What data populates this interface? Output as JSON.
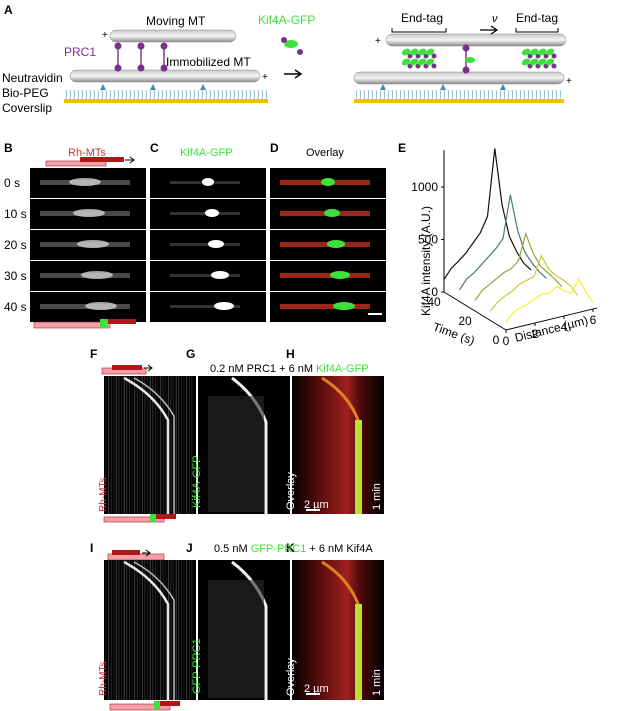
{
  "panel_letters": [
    "A",
    "B",
    "C",
    "D",
    "E",
    "F",
    "G",
    "H",
    "I",
    "J",
    "K"
  ],
  "schematic": {
    "moving_mt": "Moving MT",
    "immobilized_mt": "Immobilized MT",
    "prc1": "PRC1",
    "kif4a_gfp": "Kif4A-GFP",
    "neutravidin": "Neutravidin",
    "bio_peg": "Bio-PEG",
    "coverslip": "Coverslip",
    "end_tag_left": "End-tag",
    "end_tag_right": "End-tag",
    "plus": "+",
    "nu": "ν",
    "colors": {
      "prc1": "#7b2f8e",
      "kif4a": "#3ce23a",
      "mt": "#9a9a9a",
      "coverslip": "#f0c000"
    }
  },
  "timelapse": {
    "col_b_title": "Rh-MTs",
    "col_c_title": "Kif4A-GFP",
    "col_d_title": "Overlay",
    "times": [
      "0 s",
      "10 s",
      "20 s",
      "30 s",
      "40 s"
    ]
  },
  "kymo1": {
    "condition_prefix": "0.2 nM PRC1 + 6 nM ",
    "condition_highlight": "Kif4A-GFP",
    "label_f": "Rh-MTs",
    "label_g": "Kif4A-GFP",
    "label_h": "Overlay",
    "scale_x": "2 µm",
    "scale_t": "1 min"
  },
  "kymo2": {
    "condition_prefix1": "0.5 nM ",
    "condition_highlight": "GFP-PRC1",
    "condition_suffix": " + 6 nM Kif4A",
    "label_i": "Rh-MTs",
    "label_j": "GFP-PRC1",
    "label_k": "Overlay",
    "scale_x": "2 µm",
    "scale_t": "1 min"
  },
  "chart_data": {
    "type": "line",
    "zlabel": "Kif4A intensity (A.U.)",
    "xlabel": "Distance (µm)",
    "ylabel": "Time (s)",
    "z_ticks": [
      0,
      500,
      1000
    ],
    "x_ticks": [
      0,
      2,
      4,
      6
    ],
    "y_ticks": [
      0,
      20,
      40
    ],
    "x": [
      0,
      0.5,
      1,
      1.5,
      2,
      2.5,
      3,
      3.5,
      4,
      4.5,
      5,
      5.5,
      6
    ],
    "series": [
      {
        "time": 0,
        "color": "#f0f03a",
        "values": [
          80,
          150,
          180,
          200,
          230,
          260,
          250,
          300,
          240,
          200,
          320,
          180,
          60
        ]
      },
      {
        "time": 10,
        "color": "#c8cc33",
        "values": [
          90,
          160,
          200,
          230,
          280,
          300,
          320,
          500,
          360,
          280,
          220,
          150,
          40
        ]
      },
      {
        "time": 20,
        "color": "#8aa83a",
        "values": [
          100,
          180,
          220,
          260,
          300,
          320,
          380,
          620,
          420,
          280,
          200,
          120,
          30
        ]
      },
      {
        "time": 30,
        "color": "#4f7d6a",
        "values": [
          110,
          200,
          240,
          300,
          360,
          420,
          500,
          900,
          550,
          320,
          200,
          100,
          20
        ]
      },
      {
        "time": 40,
        "color": "#111111",
        "values": [
          120,
          210,
          260,
          320,
          400,
          480,
          620,
          1250,
          700,
          380,
          220,
          90,
          10
        ]
      }
    ]
  }
}
